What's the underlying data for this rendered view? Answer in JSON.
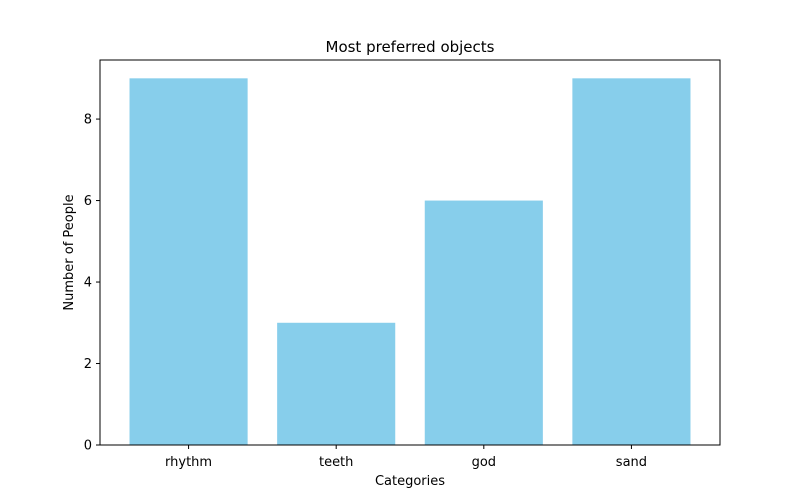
{
  "chart_data": {
    "type": "bar",
    "title": "Most preferred objects",
    "xlabel": "Categories",
    "ylabel": "Number of People",
    "categories": [
      "rhythm",
      "teeth",
      "god",
      "sand"
    ],
    "values": [
      9,
      3,
      6,
      9
    ],
    "ylim": [
      0,
      9.45
    ],
    "yticks": [
      0,
      2,
      4,
      6,
      8
    ],
    "grid": false,
    "bar_color": "#87ceeb"
  }
}
